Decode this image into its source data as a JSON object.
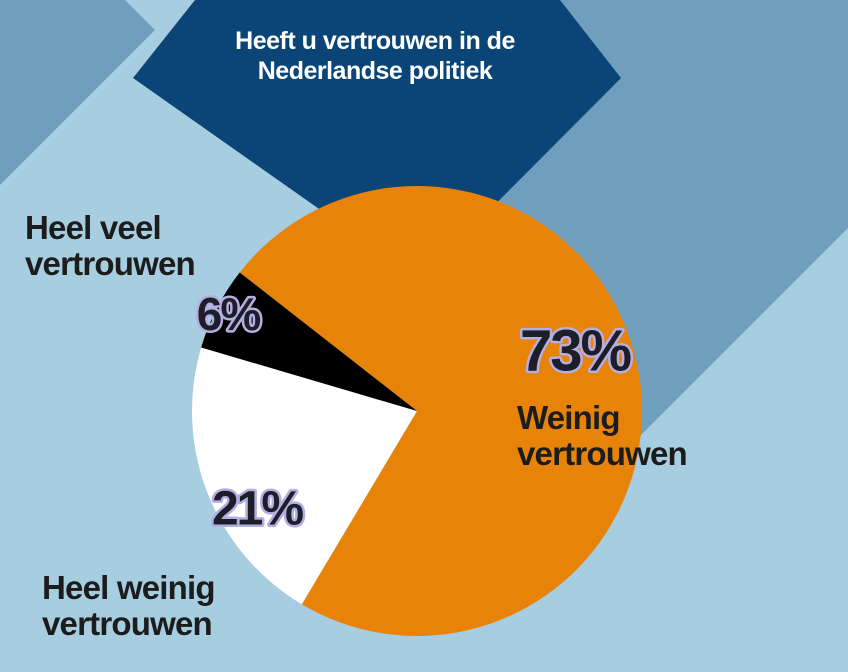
{
  "chart_data": {
    "type": "pie",
    "title": "Heeft u vertrouwen in de Nederlandse politiek",
    "categories": [
      "Weinig vertrouwen",
      "Heel weinig vertrouwen",
      "Heel veel vertrouwen"
    ],
    "values": [
      73,
      21,
      6
    ],
    "value_labels": [
      "73%",
      "21%",
      "6%"
    ],
    "colors": [
      "#e8830a",
      "#ffffff",
      "#000000"
    ]
  }
}
